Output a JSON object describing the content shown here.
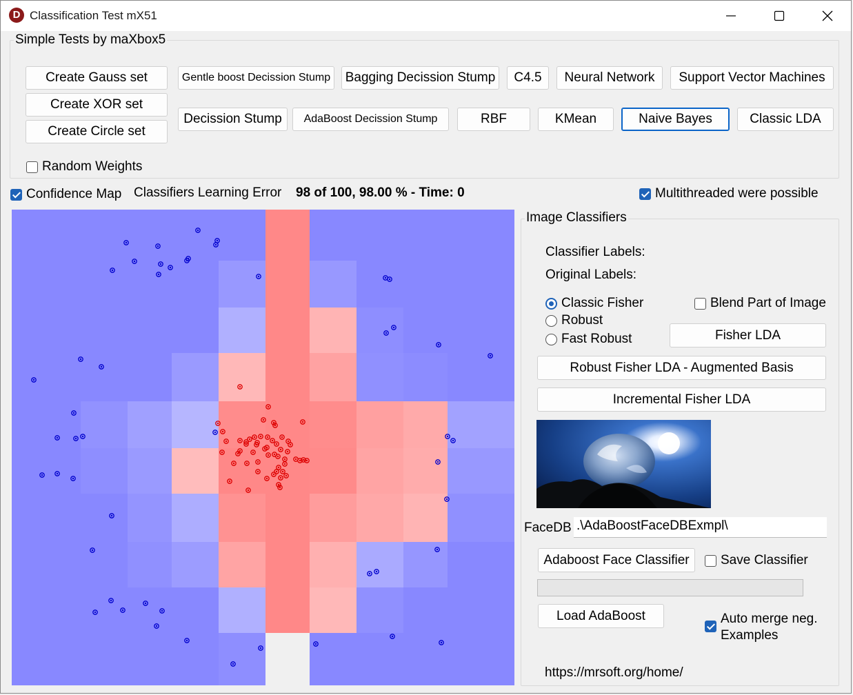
{
  "window": {
    "title": "Classification Test mX51",
    "icon": "app-d-icon",
    "controls": [
      "minimize-icon",
      "maximize-icon",
      "close-icon"
    ]
  },
  "tests_group": {
    "title": "Simple Tests by maXbox5",
    "set_buttons": [
      "Create Gauss set",
      "Create XOR set",
      "Create Circle set"
    ],
    "row1": [
      "Gentle boost Decission Stump",
      "Bagging Decission Stump",
      "C4.5",
      "Neural Network",
      "Support Vector Machines"
    ],
    "row2": [
      "Decission Stump",
      "AdaBoost Decission Stump",
      "RBF",
      "KMean",
      "Naive Bayes",
      "Classic LDA"
    ],
    "random_weights": {
      "label": "Random Weights",
      "checked": false
    }
  },
  "status": {
    "confidence_map": {
      "label": "Confidence Map",
      "checked": true
    },
    "error_label": "Classifiers Learning Error",
    "error_value": "98 of 100, 98.00 % - Time: 0",
    "multithreaded": {
      "label": "Multithreaded were possible",
      "checked": true
    }
  },
  "image_group": {
    "title": "Image Classifiers",
    "classifier_labels": "Classifier Labels:",
    "original_labels": "Original Labels:",
    "radios": [
      {
        "label": "Classic Fisher",
        "checked": true
      },
      {
        "label": "Robust",
        "checked": false
      },
      {
        "label": "Fast Robust",
        "checked": false
      }
    ],
    "blend": {
      "label": "Blend Part of Image",
      "checked": false
    },
    "fisher_lda": "Fisher LDA",
    "robust_fisher": "Robust Fisher LDA - Augmented Basis",
    "incremental_fisher": "Incremental Fisher LDA",
    "facedb_label": "FaceDB",
    "facedb_value": ".\\AdaBoostFaceDBExmpl\\",
    "adaboost_face": "Adaboost Face Classifier",
    "save_classifier": {
      "label": "Save Classifier",
      "checked": false
    },
    "progress": 0,
    "load_adaboost": "Load AdaBoost",
    "auto_merge": {
      "label": "Auto merge neg. Examples",
      "label_lines": [
        "Auto merge neg.",
        "Examples"
      ],
      "checked": true
    },
    "url": "https://mrsoft.org/home/"
  },
  "colors": {
    "negative_region": "#8888ff",
    "positive_region": "#ff8888",
    "negative_points": "#0000cc",
    "positive_points": "#dd0000",
    "accent": "#1f63b8"
  }
}
